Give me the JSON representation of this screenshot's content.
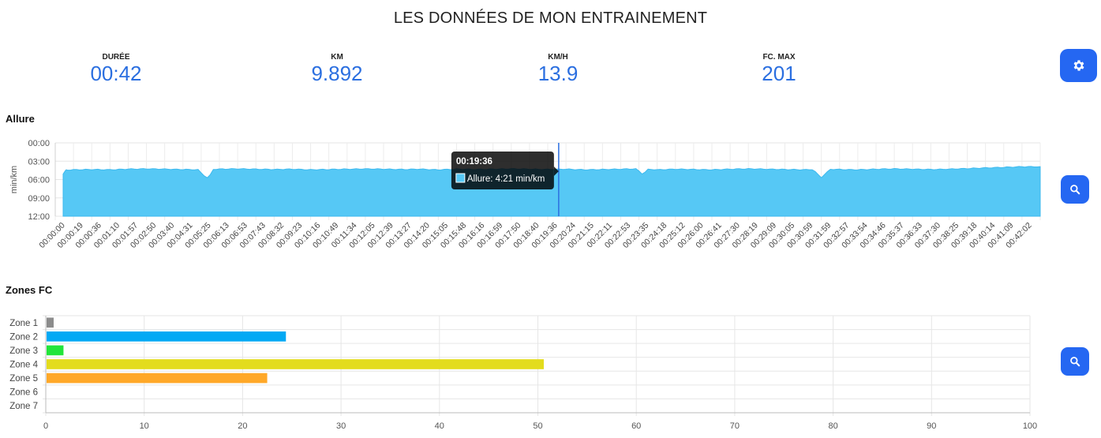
{
  "page": {
    "title": "LES DONNÉES DE MON ENTRAINEMENT"
  },
  "stats": [
    {
      "label": "DURÉE",
      "value": "00:42"
    },
    {
      "label": "KM",
      "value": "9.892"
    },
    {
      "label": "KM/H",
      "value": "13.9"
    },
    {
      "label": "FC. MAX",
      "value": "201"
    }
  ],
  "buttons": {
    "settings_icon": "gear-icon",
    "zoom_icon": "search-icon"
  },
  "colors": {
    "accent": "#2567f2",
    "stat_value": "#2b6fe0",
    "allure_fill": "#56c8f5",
    "cursor_line": "#2b6fe0"
  },
  "allure_section": {
    "title": "Allure"
  },
  "zones_section": {
    "title": "Zones FC"
  },
  "chart_data": [
    {
      "type": "area",
      "title": "Allure",
      "ylabel": "min/km",
      "y_ticks": [
        "00:00",
        "03:00",
        "06:00",
        "09:00",
        "12:00"
      ],
      "ylim_minutes": [
        0,
        12
      ],
      "y_reversed": true,
      "grid": true,
      "x_tick_labels": [
        "00:00:00",
        "00:00:19",
        "00:00:36",
        "00:01:10",
        "00:01:57",
        "00:02:50",
        "00:03:40",
        "00:04:31",
        "00:05:25",
        "00:06:13",
        "00:06:53",
        "00:07:43",
        "00:08:32",
        "00:09:23",
        "00:10:16",
        "00:10:49",
        "00:11:34",
        "00:12:05",
        "00:12:39",
        "00:13:27",
        "00:14:20",
        "00:15:05",
        "00:15:48",
        "00:16:16",
        "00:16:59",
        "00:17:50",
        "00:18:40",
        "00:19:36",
        "00:20:24",
        "00:21:15",
        "00:22:11",
        "00:22:53",
        "00:23:35",
        "00:24:18",
        "00:25:12",
        "00:26:00",
        "00:26:41",
        "00:27:30",
        "00:28:19",
        "00:29:09",
        "00:30:05",
        "00:30:59",
        "00:31:59",
        "00:32:57",
        "00:33:54",
        "00:34:46",
        "00:35:37",
        "00:36:33",
        "00:37:30",
        "00:38:25",
        "00:39:18",
        "00:40:14",
        "00:41:09",
        "00:42:02"
      ],
      "series": [
        {
          "name": "Allure",
          "pace_minutes": [
            4.5,
            4.4,
            4.35,
            4.4,
            4.3,
            4.25,
            4.3,
            4.35,
            4.4,
            4.3,
            4.25,
            4.3,
            4.35,
            4.3,
            4.4,
            4.35,
            4.3,
            4.25,
            4.3,
            4.35,
            4.3,
            4.4,
            4.3,
            4.35,
            4.3,
            4.25,
            4.3,
            4.35,
            4.3,
            4.4,
            4.35,
            4.3,
            4.25,
            4.4,
            4.3,
            4.35,
            4.4,
            4.3,
            4.25,
            4.3,
            4.35,
            4.4,
            4.3,
            4.35,
            4.4,
            4.3,
            4.25,
            4.3,
            4.35,
            4.3,
            4.2,
            4.1,
            4.0,
            3.9
          ],
          "dips": [
            {
              "index": 8.3,
              "pace_minutes": 5.8
            },
            {
              "index": 32.2,
              "pace_minutes": 5.2
            },
            {
              "index": 42.0,
              "pace_minutes": 5.7
            }
          ]
        }
      ],
      "tooltip": {
        "title": "00:19:36",
        "label": "Allure: 4:21 min/km",
        "index": 27
      }
    },
    {
      "type": "bar",
      "orientation": "horizontal",
      "title": "Zones FC",
      "categories": [
        "Zone 1",
        "Zone 2",
        "Zone 3",
        "Zone 4",
        "Zone 5",
        "Zone 6",
        "Zone 7"
      ],
      "values": [
        0.8,
        24.4,
        1.8,
        50.6,
        22.5,
        0,
        0
      ],
      "colors": [
        "#8c8c8c",
        "#03a9f4",
        "#22e53a",
        "#e3dc1d",
        "#ffa828",
        "#cccccc",
        "#cccccc"
      ],
      "xlim": [
        0,
        100
      ],
      "x_ticks": [
        "0",
        "10",
        "20",
        "30",
        "40",
        "50",
        "60",
        "70",
        "80",
        "90",
        "100"
      ],
      "grid": true
    }
  ]
}
